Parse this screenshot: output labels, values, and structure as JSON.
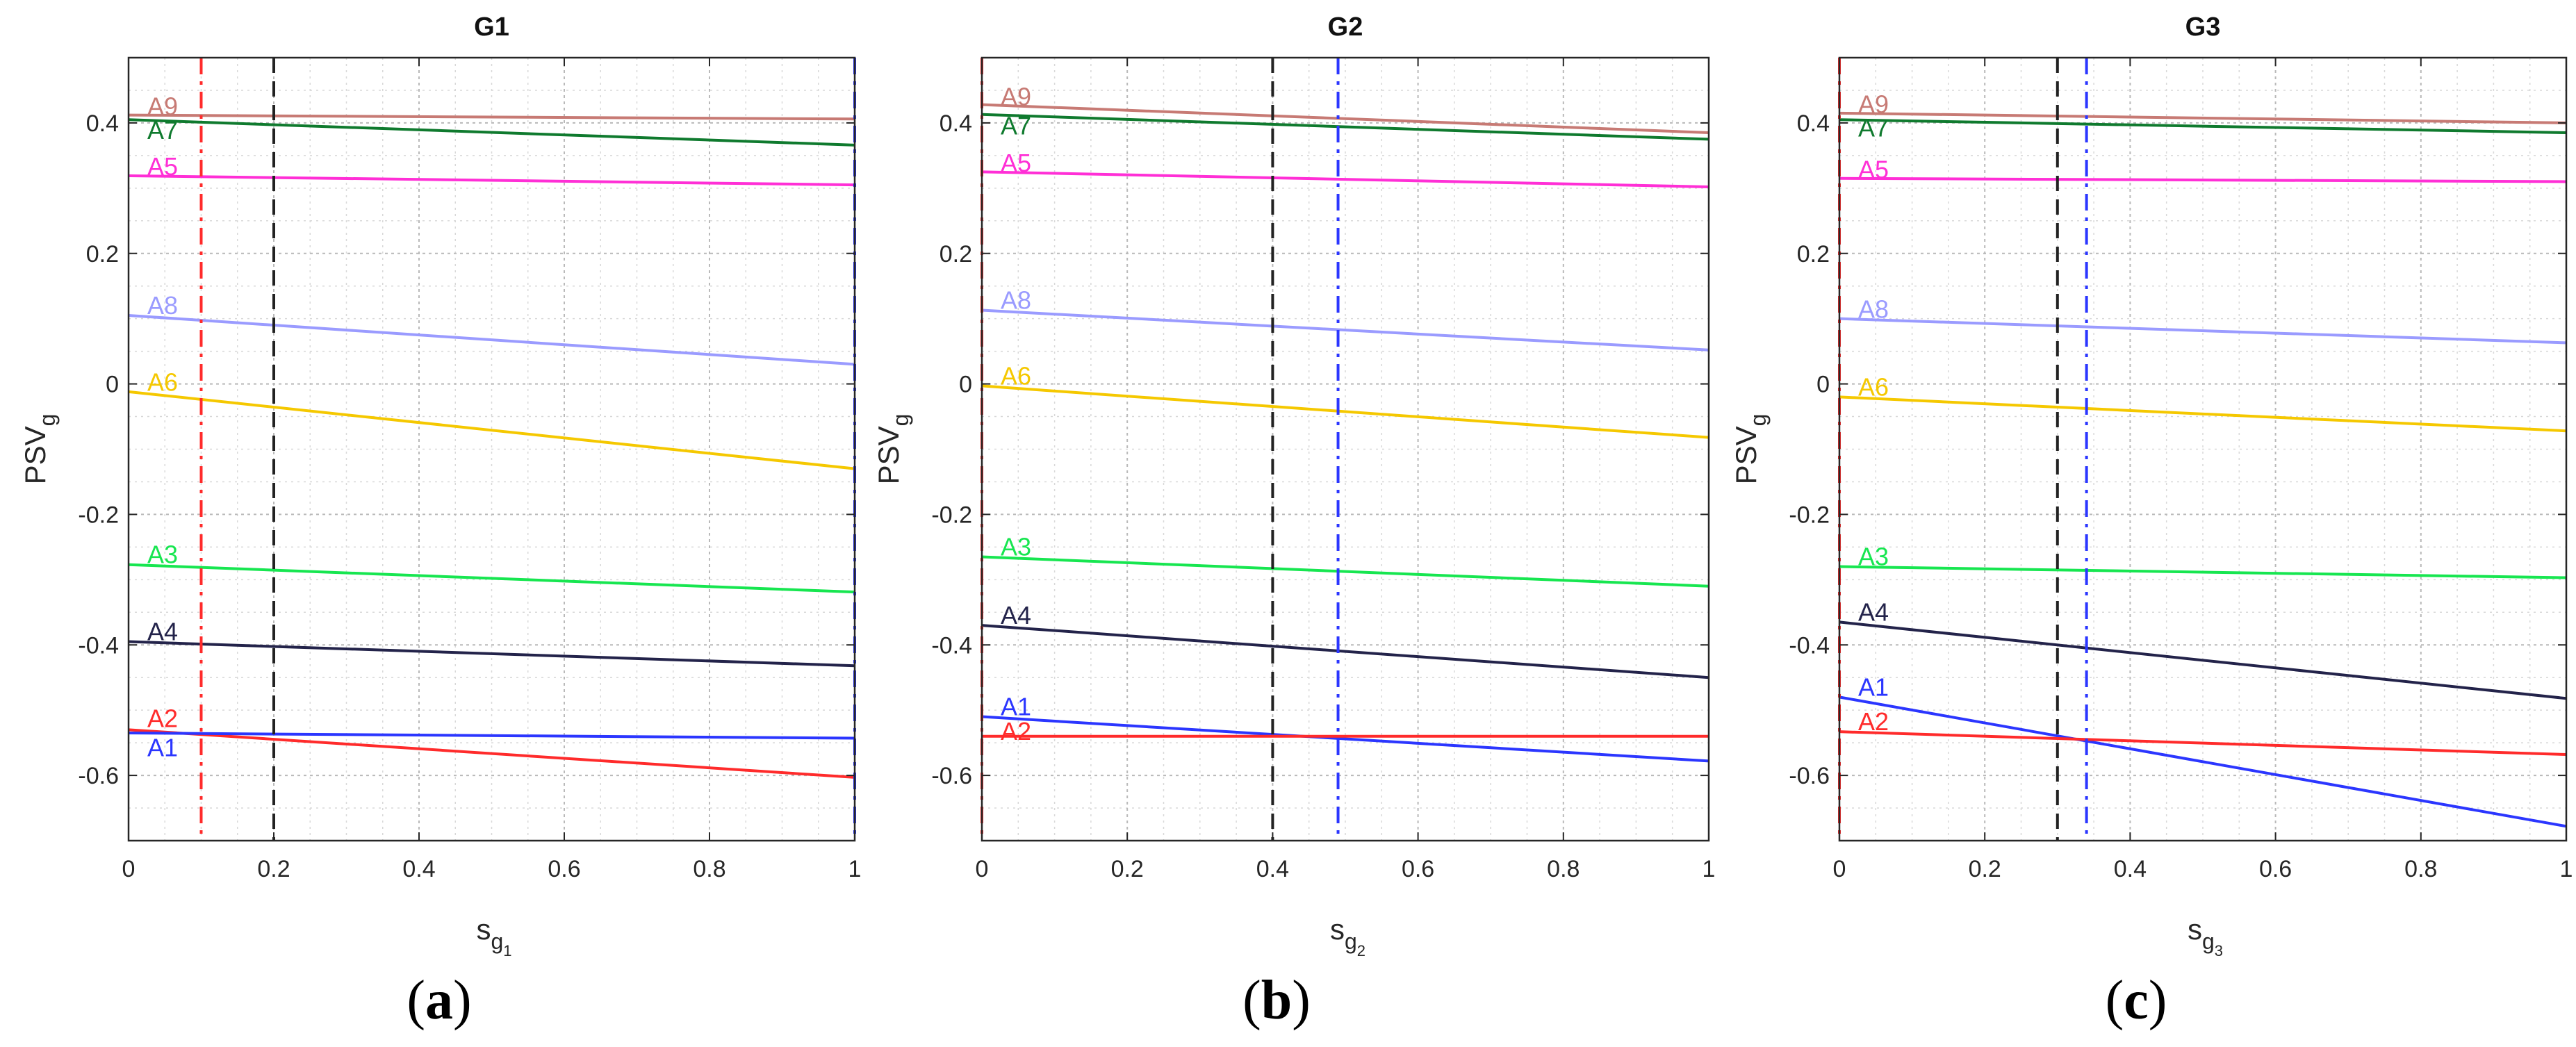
{
  "chart_data": [
    {
      "type": "line",
      "title": "G1",
      "xlabel": "s",
      "xlabel_sub": "g",
      "xlabel_subsub": "1",
      "ylabel": "PSV",
      "ylabel_sub": "g",
      "caption": "a",
      "xlim": [
        0,
        1
      ],
      "ylim": [
        -0.7,
        0.5
      ],
      "grid": true,
      "xticks": [
        "0",
        "0.2",
        "0.4",
        "0.6",
        "0.8",
        "1"
      ],
      "xtick_values": [
        0,
        0.2,
        0.4,
        0.6,
        0.8,
        1
      ],
      "yticks": [
        "-0.6",
        "-0.4",
        "-0.2",
        "0",
        "0.2",
        "0.4"
      ],
      "ytick_values": [
        -0.6,
        -0.4,
        -0.2,
        0,
        0.2,
        0.4
      ],
      "series": [
        {
          "name": "A9",
          "color": "#c77a74",
          "x": [
            0,
            1
          ],
          "y": [
            0.412,
            0.406
          ],
          "label_y": 0.425
        },
        {
          "name": "A7",
          "color": "#0f7a2e",
          "x": [
            0,
            1
          ],
          "y": [
            0.405,
            0.366
          ],
          "label_y": 0.388
        },
        {
          "name": "A5",
          "color": "#ff2fd6",
          "x": [
            0,
            1
          ],
          "y": [
            0.319,
            0.305
          ],
          "label_y": 0.333
        },
        {
          "name": "A8",
          "color": "#9a9bff",
          "x": [
            0,
            1
          ],
          "y": [
            0.105,
            0.03
          ],
          "label_y": 0.12
        },
        {
          "name": "A6",
          "color": "#f5c800",
          "x": [
            0,
            1
          ],
          "y": [
            -0.012,
            -0.13
          ],
          "label_y": 0.002
        },
        {
          "name": "A3",
          "color": "#17e650",
          "x": [
            0,
            1
          ],
          "y": [
            -0.277,
            -0.319
          ],
          "label_y": -0.262
        },
        {
          "name": "A4",
          "color": "#23234a",
          "x": [
            0,
            1
          ],
          "y": [
            -0.395,
            -0.432
          ],
          "label_y": -0.38
        },
        {
          "name": "A2",
          "color": "#ff2b2b",
          "x": [
            0,
            1
          ],
          "y": [
            -0.53,
            -0.603
          ],
          "label_y": -0.513
        },
        {
          "name": "A1",
          "color": "#2b36ff",
          "x": [
            0,
            1
          ],
          "y": [
            -0.535,
            -0.543
          ],
          "label_y": -0.558
        }
      ],
      "vlines": [
        {
          "x": 0.1,
          "color": "#ff2b2b",
          "style": "dashdot"
        },
        {
          "x": 0.2,
          "color": "#222222",
          "style": "dashed"
        },
        {
          "x": 1.0,
          "color": "#2b36ff",
          "style": "dashdot"
        }
      ]
    },
    {
      "type": "line",
      "title": "G2",
      "xlabel": "s",
      "xlabel_sub": "g",
      "xlabel_subsub": "2",
      "ylabel": "PSV",
      "ylabel_sub": "g",
      "caption": "b",
      "xlim": [
        0,
        1
      ],
      "ylim": [
        -0.7,
        0.5
      ],
      "grid": true,
      "xticks": [
        "0",
        "0.2",
        "0.4",
        "0.6",
        "0.8",
        "1"
      ],
      "xtick_values": [
        0,
        0.2,
        0.4,
        0.6,
        0.8,
        1
      ],
      "yticks": [
        "-0.6",
        "-0.4",
        "-0.2",
        "0",
        "0.2",
        "0.4"
      ],
      "ytick_values": [
        -0.6,
        -0.4,
        -0.2,
        0,
        0.2,
        0.4
      ],
      "series": [
        {
          "name": "A9",
          "color": "#c77a74",
          "x": [
            0,
            1
          ],
          "y": [
            0.428,
            0.385
          ],
          "label_y": 0.44
        },
        {
          "name": "A7",
          "color": "#0f7a2e",
          "x": [
            0,
            1
          ],
          "y": [
            0.413,
            0.375
          ],
          "label_y": 0.395
        },
        {
          "name": "A5",
          "color": "#ff2fd6",
          "x": [
            0,
            1
          ],
          "y": [
            0.325,
            0.302
          ],
          "label_y": 0.338
        },
        {
          "name": "A8",
          "color": "#9a9bff",
          "x": [
            0,
            1
          ],
          "y": [
            0.113,
            0.052
          ],
          "label_y": 0.128
        },
        {
          "name": "A6",
          "color": "#f5c800",
          "x": [
            0,
            1
          ],
          "y": [
            -0.003,
            -0.082
          ],
          "label_y": 0.012
        },
        {
          "name": "A3",
          "color": "#17e650",
          "x": [
            0,
            1
          ],
          "y": [
            -0.265,
            -0.31
          ],
          "label_y": -0.25
        },
        {
          "name": "A4",
          "color": "#23234a",
          "x": [
            0,
            1
          ],
          "y": [
            -0.37,
            -0.45
          ],
          "label_y": -0.355
        },
        {
          "name": "A1",
          "color": "#2b36ff",
          "x": [
            0,
            1
          ],
          "y": [
            -0.51,
            -0.578
          ],
          "label_y": -0.495
        },
        {
          "name": "A2",
          "color": "#ff2b2b",
          "x": [
            0,
            1
          ],
          "y": [
            -0.54,
            -0.54
          ],
          "label_y": -0.533
        }
      ],
      "vlines": [
        {
          "x": 0.0,
          "color": "#ff2b2b",
          "style": "dashdot"
        },
        {
          "x": 0.4,
          "color": "#222222",
          "style": "dashed"
        },
        {
          "x": 0.49,
          "color": "#2b36ff",
          "style": "dashdot"
        }
      ]
    },
    {
      "type": "line",
      "title": "G3",
      "xlabel": "s",
      "xlabel_sub": "g",
      "xlabel_subsub": "3",
      "ylabel": "PSV",
      "ylabel_sub": "g",
      "caption": "c",
      "xlim": [
        0,
        1
      ],
      "ylim": [
        -0.7,
        0.5
      ],
      "grid": true,
      "xticks": [
        "0",
        "0.2",
        "0.4",
        "0.6",
        "0.8",
        "1"
      ],
      "xtick_values": [
        0,
        0.2,
        0.4,
        0.6,
        0.8,
        1
      ],
      "yticks": [
        "-0.6",
        "-0.4",
        "-0.2",
        "0",
        "0.2",
        "0.4"
      ],
      "ytick_values": [
        -0.6,
        -0.4,
        -0.2,
        0,
        0.2,
        0.4
      ],
      "series": [
        {
          "name": "A9",
          "color": "#c77a74",
          "x": [
            0,
            1
          ],
          "y": [
            0.415,
            0.4
          ],
          "label_y": 0.428
        },
        {
          "name": "A7",
          "color": "#0f7a2e",
          "x": [
            0,
            1
          ],
          "y": [
            0.405,
            0.385
          ],
          "label_y": 0.392
        },
        {
          "name": "A5",
          "color": "#ff2fd6",
          "x": [
            0,
            1
          ],
          "y": [
            0.315,
            0.31
          ],
          "label_y": 0.328
        },
        {
          "name": "A8",
          "color": "#9a9bff",
          "x": [
            0,
            1
          ],
          "y": [
            0.1,
            0.063
          ],
          "label_y": 0.114
        },
        {
          "name": "A6",
          "color": "#f5c800",
          "x": [
            0,
            1
          ],
          "y": [
            -0.02,
            -0.072
          ],
          "label_y": -0.005
        },
        {
          "name": "A3",
          "color": "#17e650",
          "x": [
            0,
            1
          ],
          "y": [
            -0.28,
            -0.297
          ],
          "label_y": -0.265
        },
        {
          "name": "A4",
          "color": "#23234a",
          "x": [
            0,
            1
          ],
          "y": [
            -0.365,
            -0.482
          ],
          "label_y": -0.35
        },
        {
          "name": "A1",
          "color": "#2b36ff",
          "x": [
            0,
            1
          ],
          "y": [
            -0.48,
            -0.678
          ],
          "label_y": -0.465
        },
        {
          "name": "A2",
          "color": "#ff2b2b",
          "x": [
            0,
            1
          ],
          "y": [
            -0.533,
            -0.568
          ],
          "label_y": -0.518
        }
      ],
      "vlines": [
        {
          "x": 0.0,
          "color": "#ff2b2b",
          "style": "dashdot"
        },
        {
          "x": 0.3,
          "color": "#222222",
          "style": "dashed"
        },
        {
          "x": 0.34,
          "color": "#2b36ff",
          "style": "dashdot"
        }
      ]
    }
  ]
}
